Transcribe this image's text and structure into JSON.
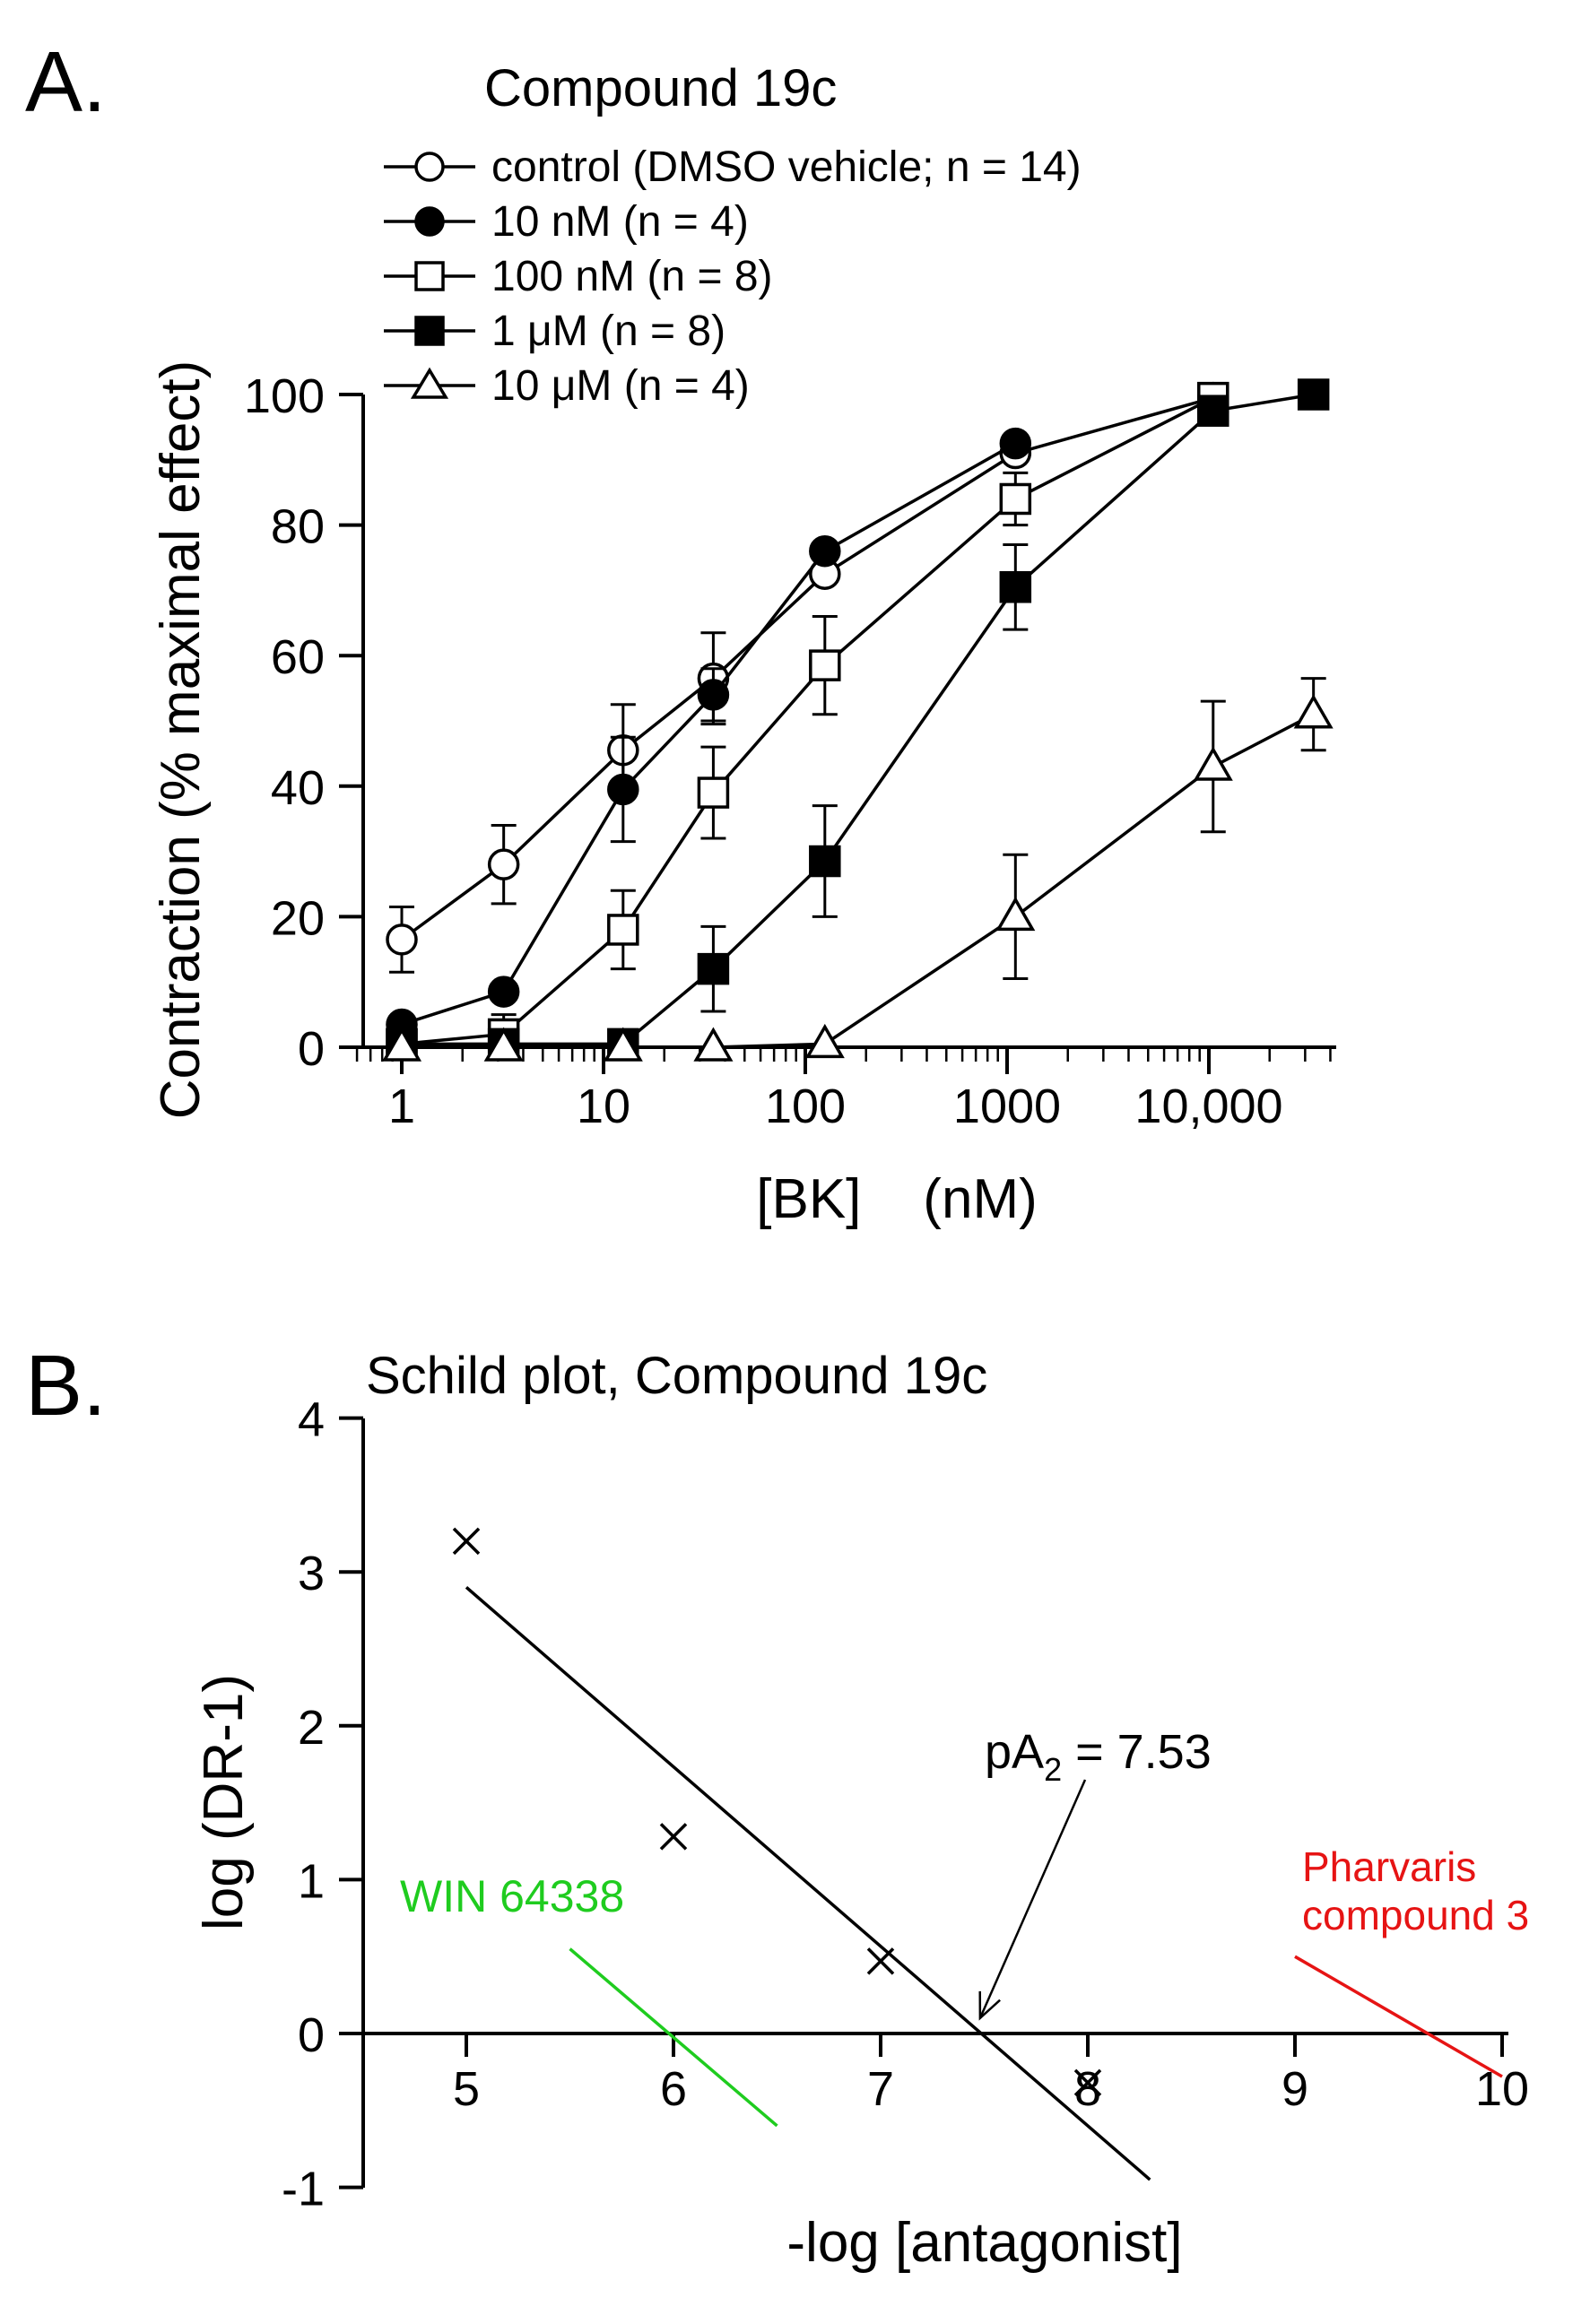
{
  "chart_data": [
    {
      "panel": "A.",
      "type": "line",
      "title": "Compound 19c",
      "xlabel": "[BK]    (nM)",
      "ylabel": "Contraction (% maximal effect)",
      "xscale": "log",
      "xlim": [
        0.6,
        40000
      ],
      "ylim": [
        0,
        100
      ],
      "xticks": [
        1,
        10,
        100,
        1000,
        10000
      ],
      "xtick_labels": [
        "1",
        "10",
        "100",
        "1000",
        "10,000"
      ],
      "yticks": [
        0,
        20,
        40,
        60,
        80,
        100
      ],
      "ytick_labels": [
        "0",
        "20",
        "40",
        "60",
        "80",
        "100"
      ],
      "legend_position": "top-left",
      "series": [
        {
          "name": "control (DMSO vehicle; n = 14)",
          "marker": "circle",
          "filled": false,
          "x": [
            1,
            3.2,
            12.5,
            35,
            125,
            1100,
            10500
          ],
          "y": [
            16.5,
            28,
            45.5,
            56.5,
            72.5,
            91,
            99.5
          ],
          "err": [
            5,
            6,
            7,
            7,
            0,
            0,
            0
          ]
        },
        {
          "name": "10 nM (n = 4)",
          "marker": "circle",
          "filled": true,
          "x": [
            1,
            3.2,
            12.5,
            35,
            125,
            1100
          ],
          "y": [
            3.5,
            8.5,
            39.5,
            54,
            76,
            92.5
          ],
          "err": [
            0,
            0,
            8,
            4,
            0,
            0
          ]
        },
        {
          "name": "100 nM (n = 8)",
          "marker": "square",
          "filled": false,
          "x": [
            1,
            3.2,
            12.5,
            35,
            125,
            1100,
            10500
          ],
          "y": [
            0.5,
            2,
            18,
            39,
            58.5,
            84,
            99.5
          ],
          "err": [
            0,
            3,
            6,
            7,
            7.5,
            4,
            0
          ]
        },
        {
          "name": "1 μM (n = 8)",
          "marker": "square",
          "filled": true,
          "x": [
            1,
            3.2,
            12.5,
            35,
            125,
            1100,
            10500,
            33000
          ],
          "y": [
            0.5,
            0.5,
            0.5,
            12,
            28.5,
            70.5,
            97.5,
            100
          ],
          "err": [
            0,
            0,
            0,
            6.5,
            8.5,
            6.5,
            0,
            0
          ]
        },
        {
          "name": "10 μM (n = 4)",
          "marker": "triangle",
          "filled": false,
          "x": [
            1,
            3.2,
            12.5,
            35,
            125,
            1100,
            10500,
            33000
          ],
          "y": [
            0,
            0,
            0,
            0,
            0.5,
            20,
            43,
            51
          ],
          "err": [
            0,
            0,
            0,
            0,
            0,
            9.5,
            10,
            5.5
          ]
        }
      ]
    },
    {
      "panel": "B.",
      "type": "scatter",
      "title": "Schild plot, Compound 19c",
      "xlabel": "-log [antagonist]",
      "ylabel": "log (DR-1)",
      "xlim": [
        4.5,
        10
      ],
      "ylim": [
        -1,
        4
      ],
      "xticks": [
        5,
        6,
        7,
        8,
        9,
        10
      ],
      "yticks": [
        -1,
        0,
        1,
        2,
        3,
        4
      ],
      "points": [
        {
          "x": 5,
          "y": 3.2
        },
        {
          "x": 6,
          "y": 1.28
        },
        {
          "x": 7,
          "y": 0.47
        },
        {
          "x": 8,
          "y": -0.32
        }
      ],
      "fit_line": {
        "x": [
          5,
          8.3
        ],
        "y": [
          2.9,
          -0.95
        ]
      },
      "annotations": [
        {
          "text_main": "pA",
          "text_sub": "2",
          "text_rest": " = 7.53",
          "arrow_to": [
            7.48,
            0.1
          ],
          "color": "#000000"
        },
        {
          "text": "WIN 64338",
          "color": "#1fcc1f",
          "line": {
            "x": [
              5.5,
              6.5
            ],
            "y": [
              0.55,
              -0.6
            ]
          }
        },
        {
          "text": "Pharvaris",
          "text2": "compound 3",
          "color": "#e61414",
          "line": {
            "x": [
              9,
              10
            ],
            "y": [
              0.5,
              -0.28
            ]
          }
        }
      ]
    }
  ]
}
